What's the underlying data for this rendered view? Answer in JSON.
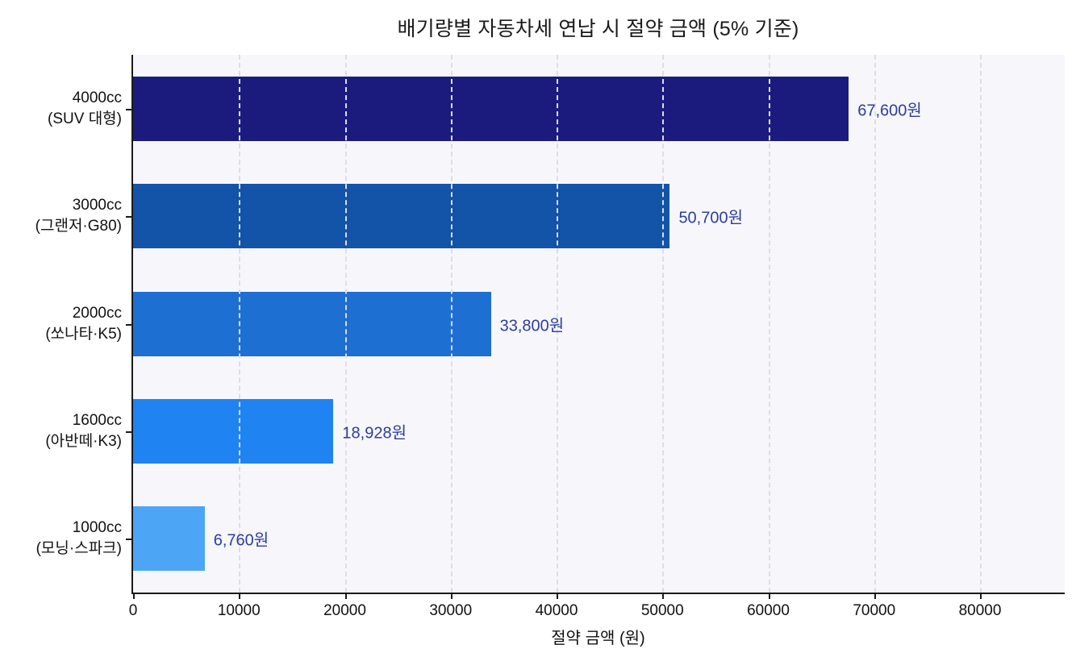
{
  "chart_data": {
    "type": "bar",
    "orientation": "horizontal",
    "title": "배기량별 자동차세 연납 시 절약 금액 (5% 기준)",
    "xlabel": "절약 금액 (원)",
    "categories": [
      [
        "4000cc",
        "(SUV 대형)"
      ],
      [
        "3000cc",
        "(그랜저·G80)"
      ],
      [
        "2000cc",
        "(쏘나타·K5)"
      ],
      [
        "1600cc",
        "(아반떼·K3)"
      ],
      [
        "1000cc",
        "(모닝·스파크)"
      ]
    ],
    "values": [
      67600,
      50700,
      33800,
      18928,
      6760
    ],
    "value_labels": [
      "67,600원",
      "50,700원",
      "33,800원",
      "18,928원",
      "6,760원"
    ],
    "bar_colors": [
      "#1b1b7e",
      "#1353a8",
      "#1e6fd2",
      "#1f83f2",
      "#4da5f5"
    ],
    "value_label_color": "#2e3d9e",
    "xlim": [
      0,
      88000
    ],
    "xticks": [
      0,
      10000,
      20000,
      30000,
      40000,
      50000,
      60000,
      70000,
      80000
    ],
    "xtick_labels": [
      "0",
      "10000",
      "20000",
      "30000",
      "40000",
      "50000",
      "60000",
      "70000",
      "80000"
    ],
    "grid": "vertical-dashed",
    "legend": "none",
    "plot_background": "#f7f7fb"
  }
}
